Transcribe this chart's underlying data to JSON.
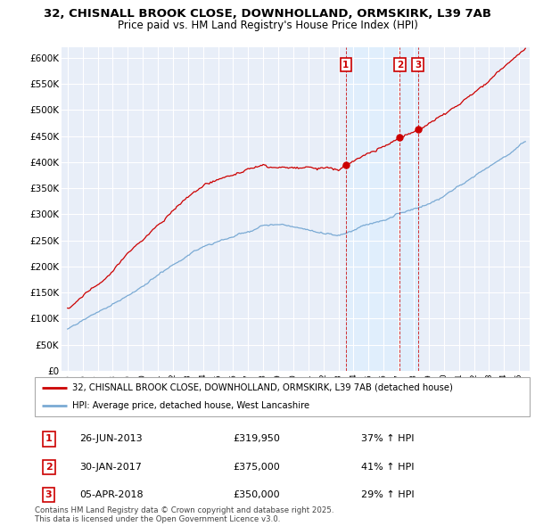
{
  "title": "32, CHISNALL BROOK CLOSE, DOWNHOLLAND, ORMSKIRK, L39 7AB",
  "subtitle": "Price paid vs. HM Land Registry's House Price Index (HPI)",
  "ylim": [
    0,
    620000
  ],
  "yticks": [
    0,
    50000,
    100000,
    150000,
    200000,
    250000,
    300000,
    350000,
    400000,
    450000,
    500000,
    550000,
    600000
  ],
  "ytick_labels": [
    "£0",
    "£50K",
    "£100K",
    "£150K",
    "£200K",
    "£250K",
    "£300K",
    "£350K",
    "£400K",
    "£450K",
    "£500K",
    "£550K",
    "£600K"
  ],
  "property_color": "#cc0000",
  "hpi_color": "#7aaad4",
  "vline_color": "#cc0000",
  "highlight_color": "#ddeeff",
  "transactions": [
    {
      "date": 2013.49,
      "price": 319950,
      "label": "1"
    },
    {
      "date": 2017.08,
      "price": 375000,
      "label": "2"
    },
    {
      "date": 2018.27,
      "price": 350000,
      "label": "3"
    }
  ],
  "legend_property": "32, CHISNALL BROOK CLOSE, DOWNHOLLAND, ORMSKIRK, L39 7AB (detached house)",
  "legend_hpi": "HPI: Average price, detached house, West Lancashire",
  "table_rows": [
    {
      "num": "1",
      "date": "26-JUN-2013",
      "price": "£319,950",
      "info": "37% ↑ HPI"
    },
    {
      "num": "2",
      "date": "30-JAN-2017",
      "price": "£375,000",
      "info": "41% ↑ HPI"
    },
    {
      "num": "3",
      "date": "05-APR-2018",
      "price": "£350,000",
      "info": "29% ↑ HPI"
    }
  ],
  "footnote": "Contains HM Land Registry data © Crown copyright and database right 2025.\nThis data is licensed under the Open Government Licence v3.0.",
  "background_color": "#e8eef8"
}
